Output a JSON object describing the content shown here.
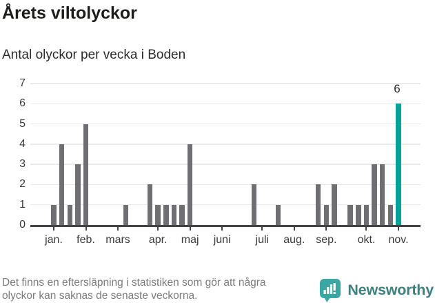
{
  "chart_data": {
    "type": "bar",
    "title": "Årets viltolyckor",
    "subtitle": "Antal olyckor per vecka i Boden",
    "x_unit": "week",
    "values": [
      1,
      4,
      1,
      3,
      5,
      0,
      0,
      0,
      0,
      1,
      0,
      0,
      2,
      1,
      1,
      1,
      1,
      4,
      0,
      0,
      0,
      0,
      0,
      0,
      0,
      2,
      0,
      0,
      1,
      0,
      0,
      0,
      0,
      2,
      1,
      2,
      0,
      1,
      1,
      1,
      3,
      3,
      1,
      6
    ],
    "highlight_index": 43,
    "highlight_value_label": "6",
    "ylim": [
      0,
      7
    ],
    "yticks": [
      0,
      1,
      2,
      3,
      4,
      5,
      6,
      7
    ],
    "grid": "horizontal",
    "month_ticks": [
      {
        "label": "jan.",
        "week": 0
      },
      {
        "label": "feb.",
        "week": 4
      },
      {
        "label": "mars",
        "week": 8
      },
      {
        "label": "apr.",
        "week": 13
      },
      {
        "label": "maj",
        "week": 17
      },
      {
        "label": "juni",
        "week": 21
      },
      {
        "label": "juli",
        "week": 26
      },
      {
        "label": "aug.",
        "week": 30
      },
      {
        "label": "sep.",
        "week": 34
      },
      {
        "label": "okt.",
        "week": 39
      },
      {
        "label": "nov.",
        "week": 43
      }
    ],
    "colors": {
      "bar": "#6e6e73",
      "highlight": "#00a29b",
      "gridline": "#e9e9e9",
      "axis": "#434346"
    }
  },
  "footer": {
    "lines": [
      "Det finns en eftersläpning i statistiken som gör att några",
      "olyckor kan saknas de senaste veckorna."
    ]
  },
  "branding": {
    "name": "Newsworthy",
    "logo_color": "#3aa8a2",
    "text_color": "#3c817f"
  }
}
